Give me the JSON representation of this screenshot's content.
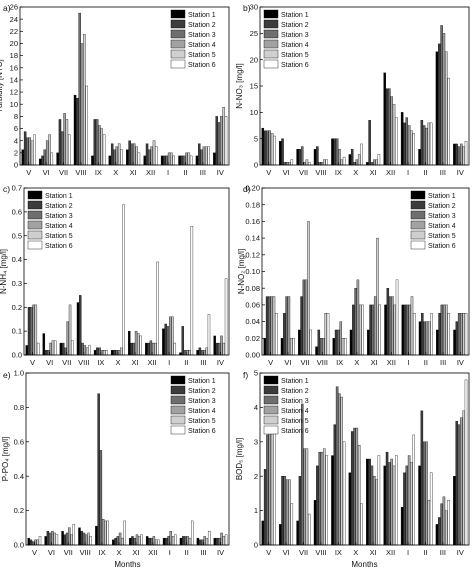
{
  "chart_data": [
    {
      "type": "bar",
      "panel_label": "a)",
      "ylabel": "Turbidity [NTU]",
      "xlabel": "",
      "categories": [
        "V",
        "VI",
        "VII",
        "VIII",
        "IX",
        "X",
        "XI",
        "XII",
        "I",
        "II",
        "III",
        "IV"
      ],
      "ylim": [
        0,
        26
      ],
      "yticks": [
        0,
        2,
        4,
        6,
        8,
        10,
        12,
        14,
        16,
        18,
        20,
        22,
        24,
        26
      ],
      "legend_position": "top-right",
      "series": [
        {
          "name": "Station 1",
          "values": [
            2.5,
            1.0,
            2.0,
            11.5,
            1.5,
            1.5,
            2.5,
            1.5,
            1.5,
            1.5,
            1.5,
            2.0
          ]
        },
        {
          "name": "Station 2",
          "values": [
            5.5,
            1.5,
            7.5,
            11.0,
            7.5,
            3.5,
            4.0,
            3.5,
            1.5,
            1.5,
            3.5,
            8.0
          ]
        },
        {
          "name": "Station 3",
          "values": [
            4.5,
            2.5,
            5.5,
            25.0,
            7.5,
            2.5,
            3.5,
            2.5,
            1.5,
            1.5,
            2.5,
            7.0
          ]
        },
        {
          "name": "Station 4",
          "values": [
            4.5,
            4.0,
            8.5,
            20.0,
            6.5,
            3.0,
            3.5,
            3.0,
            2.0,
            2.0,
            3.0,
            8.0
          ]
        },
        {
          "name": "Station 5",
          "values": [
            4.0,
            5.0,
            7.5,
            21.5,
            6.0,
            3.5,
            3.0,
            4.0,
            2.0,
            2.0,
            3.0,
            9.5
          ]
        },
        {
          "name": "Station 6",
          "values": [
            5.0,
            2.0,
            5.0,
            13.0,
            5.0,
            2.5,
            2.0,
            3.0,
            1.5,
            1.5,
            3.0,
            8.0
          ]
        }
      ]
    },
    {
      "type": "bar",
      "panel_label": "b)",
      "ylabel": "N-NO₃ [mg/l]",
      "xlabel": "",
      "categories": [
        "V",
        "VI",
        "VII",
        "VIII",
        "IX",
        "X",
        "XI",
        "XII",
        "I",
        "II",
        "III",
        "IV"
      ],
      "ylim": [
        0,
        30
      ],
      "yticks": [
        0,
        5,
        10,
        15,
        20,
        25,
        30
      ],
      "legend_position": "top-left",
      "series": [
        {
          "name": "Station 1",
          "values": [
            7.0,
            4.5,
            3.0,
            3.0,
            5.0,
            2.0,
            0.5,
            17.5,
            10.0,
            3.0,
            21.5,
            4.0
          ]
        },
        {
          "name": "Station 2",
          "values": [
            6.5,
            5.0,
            3.0,
            3.5,
            5.0,
            3.0,
            8.5,
            14.5,
            8.0,
            8.5,
            23.0,
            4.0
          ]
        },
        {
          "name": "Station 3",
          "values": [
            6.5,
            0.5,
            3.5,
            0.5,
            5.0,
            0.5,
            0.5,
            14.5,
            9.0,
            7.5,
            26.5,
            3.5
          ]
        },
        {
          "name": "Station 4",
          "values": [
            6.5,
            0.5,
            0.5,
            0.5,
            3.0,
            1.0,
            1.0,
            13.0,
            7.5,
            7.0,
            25.0,
            4.0
          ]
        },
        {
          "name": "Station 5",
          "values": [
            6.0,
            0.5,
            1.0,
            1.0,
            1.0,
            2.0,
            1.0,
            11.5,
            6.5,
            8.0,
            21.5,
            3.5
          ]
        },
        {
          "name": "Station 6",
          "values": [
            5.5,
            1.0,
            0.5,
            1.0,
            1.5,
            4.0,
            2.0,
            9.0,
            6.0,
            8.0,
            16.5,
            4.5
          ]
        }
      ]
    },
    {
      "type": "bar",
      "panel_label": "c)",
      "ylabel": "N-NH₄ [mg/l]",
      "xlabel": "",
      "categories": [
        "V",
        "VI",
        "VII",
        "VIII",
        "IX",
        "X",
        "XI",
        "XII",
        "I",
        "II",
        "III",
        "IV"
      ],
      "ylim": [
        0,
        0.7
      ],
      "yticks": [
        0.0,
        0.1,
        0.2,
        0.3,
        0.4,
        0.5,
        0.6,
        0.7
      ],
      "legend_position": "top-left",
      "series": [
        {
          "name": "Station 1",
          "values": [
            0.04,
            0.09,
            0.05,
            0.22,
            0.02,
            0.02,
            0.1,
            0.05,
            0.11,
            0.01,
            0.02,
            0.08
          ]
        },
        {
          "name": "Station 2",
          "values": [
            0.2,
            0.02,
            0.05,
            0.25,
            0.03,
            0.02,
            0.05,
            0.05,
            0.13,
            0.12,
            0.03,
            0.05
          ]
        },
        {
          "name": "Station 3",
          "values": [
            0.2,
            0.02,
            0.03,
            0.05,
            0.03,
            0.02,
            0.05,
            0.06,
            0.12,
            0.02,
            0.02,
            0.05
          ]
        },
        {
          "name": "Station 4",
          "values": [
            0.21,
            0.05,
            0.14,
            0.04,
            0.02,
            0.02,
            0.1,
            0.05,
            0.16,
            0.02,
            0.02,
            0.08
          ]
        },
        {
          "name": "Station 5",
          "values": [
            0.21,
            0.06,
            0.21,
            0.03,
            0.02,
            0.03,
            0.09,
            0.05,
            0.16,
            0.02,
            0.03,
            0.05
          ]
        },
        {
          "name": "Station 6",
          "values": [
            0.05,
            0.06,
            0.06,
            0.04,
            0.02,
            0.63,
            0.08,
            0.39,
            0.05,
            0.54,
            0.17,
            0.32
          ]
        }
      ]
    },
    {
      "type": "bar",
      "panel_label": "d)",
      "ylabel": "N-NO₂ [mg/l]",
      "xlabel": "",
      "categories": [
        "V",
        "VI",
        "VII",
        "VIII",
        "IX",
        "X",
        "XI",
        "XII",
        "I",
        "II",
        "III",
        "IV"
      ],
      "ylim": [
        0,
        0.2
      ],
      "yticks": [
        0.0,
        0.02,
        0.04,
        0.06,
        0.08,
        0.1,
        0.12,
        0.14,
        0.16,
        0.18,
        0.2
      ],
      "legend_position": "top-right",
      "series": [
        {
          "name": "Station 1",
          "values": [
            0.02,
            0.02,
            0.03,
            0.01,
            0.02,
            0.03,
            0.03,
            0.06,
            0.06,
            0.04,
            0.03,
            0.03
          ]
        },
        {
          "name": "Station 2",
          "values": [
            0.07,
            0.05,
            0.07,
            0.03,
            0.03,
            0.06,
            0.06,
            0.08,
            0.06,
            0.05,
            0.05,
            0.04
          ]
        },
        {
          "name": "Station 3",
          "values": [
            0.07,
            0.07,
            0.09,
            0.02,
            0.03,
            0.08,
            0.06,
            0.07,
            0.06,
            0.04,
            0.06,
            0.05
          ]
        },
        {
          "name": "Station 4",
          "values": [
            0.07,
            0.07,
            0.09,
            0.02,
            0.04,
            0.09,
            0.07,
            0.07,
            0.06,
            0.04,
            0.06,
            0.05
          ]
        },
        {
          "name": "Station 5",
          "values": [
            0.07,
            0.02,
            0.16,
            0.05,
            0.02,
            0.06,
            0.14,
            0.06,
            0.07,
            0.04,
            0.06,
            0.05
          ]
        },
        {
          "name": "Station 6",
          "values": [
            0.05,
            0.02,
            0.03,
            0.05,
            0.02,
            0.06,
            0.06,
            0.09,
            0.05,
            0.05,
            0.05,
            0.05
          ]
        }
      ]
    },
    {
      "type": "bar",
      "panel_label": "e)",
      "ylabel": "P-PO₄ [mg/l]",
      "xlabel": "Months",
      "categories": [
        "V",
        "VI",
        "VII",
        "VIII",
        "IX",
        "X",
        "XI",
        "XII",
        "I",
        "II",
        "III",
        "IV"
      ],
      "ylim": [
        0,
        1.0
      ],
      "yticks": [
        0.0,
        0.2,
        0.4,
        0.6,
        0.8,
        1.0
      ],
      "legend_position": "top-right",
      "series": [
        {
          "name": "Station 1",
          "values": [
            0.04,
            0.05,
            0.08,
            0.1,
            0.11,
            0.03,
            0.04,
            0.05,
            0.04,
            0.04,
            0.04,
            0.04
          ]
        },
        {
          "name": "Station 2",
          "values": [
            0.03,
            0.08,
            0.06,
            0.08,
            0.88,
            0.04,
            0.05,
            0.04,
            0.04,
            0.05,
            0.03,
            0.04
          ]
        },
        {
          "name": "Station 3",
          "values": [
            0.02,
            0.07,
            0.07,
            0.07,
            0.55,
            0.05,
            0.04,
            0.04,
            0.05,
            0.05,
            0.03,
            0.04
          ]
        },
        {
          "name": "Station 4",
          "values": [
            0.03,
            0.08,
            0.1,
            0.06,
            0.15,
            0.07,
            0.06,
            0.05,
            0.08,
            0.05,
            0.05,
            0.07
          ]
        },
        {
          "name": "Station 5",
          "values": [
            0.03,
            0.07,
            0.06,
            0.07,
            0.14,
            0.04,
            0.05,
            0.03,
            0.05,
            0.04,
            0.04,
            0.05
          ]
        },
        {
          "name": "Station 6",
          "values": [
            0.05,
            0.06,
            0.12,
            0.05,
            0.14,
            0.14,
            0.06,
            0.03,
            0.06,
            0.14,
            0.08,
            0.06
          ]
        }
      ]
    },
    {
      "type": "bar",
      "panel_label": "f)",
      "ylabel": "BOD₅ [mg/l]",
      "xlabel": "Months",
      "categories": [
        "V",
        "VI",
        "VII",
        "VIII",
        "IX",
        "X",
        "XI",
        "XII",
        "I",
        "II",
        "III",
        "IV"
      ],
      "ylim": [
        0,
        5
      ],
      "yticks": [
        0,
        1,
        2,
        3,
        4,
        5
      ],
      "legend_position": "top-left",
      "series": [
        {
          "name": "Station 1",
          "values": [
            0.7,
            0.6,
            0.7,
            1.3,
            2.6,
            2.1,
            2.5,
            2.3,
            1.1,
            2.3,
            0.6,
            2.0
          ]
        },
        {
          "name": "Station 2",
          "values": [
            2.2,
            2.0,
            2.0,
            2.3,
            3.5,
            3.3,
            2.5,
            2.7,
            2.1,
            3.9,
            0.8,
            3.6
          ]
        },
        {
          "name": "Station 3",
          "values": [
            3.2,
            2.0,
            4.1,
            2.7,
            4.6,
            3.4,
            2.3,
            2.4,
            2.3,
            3.0,
            1.2,
            3.5
          ]
        },
        {
          "name": "Station 4",
          "values": [
            3.4,
            1.9,
            2.8,
            2.7,
            4.4,
            3.4,
            2.0,
            2.5,
            2.6,
            3.0,
            1.4,
            3.7
          ]
        },
        {
          "name": "Station 5",
          "values": [
            3.3,
            1.9,
            2.8,
            2.8,
            4.3,
            2.9,
            1.9,
            2.3,
            2.4,
            1.3,
            1.0,
            3.9
          ]
        },
        {
          "name": "Station 6",
          "values": [
            3.4,
            1.2,
            0.9,
            2.6,
            3.0,
            1.2,
            2.6,
            2.6,
            3.2,
            2.1,
            1.3,
            4.8
          ]
        }
      ]
    }
  ],
  "station_colors": [
    "#000000",
    "#3c3c3c",
    "#6e6e6e",
    "#a2a2a2",
    "#cfcfcf",
    "#ffffff"
  ]
}
